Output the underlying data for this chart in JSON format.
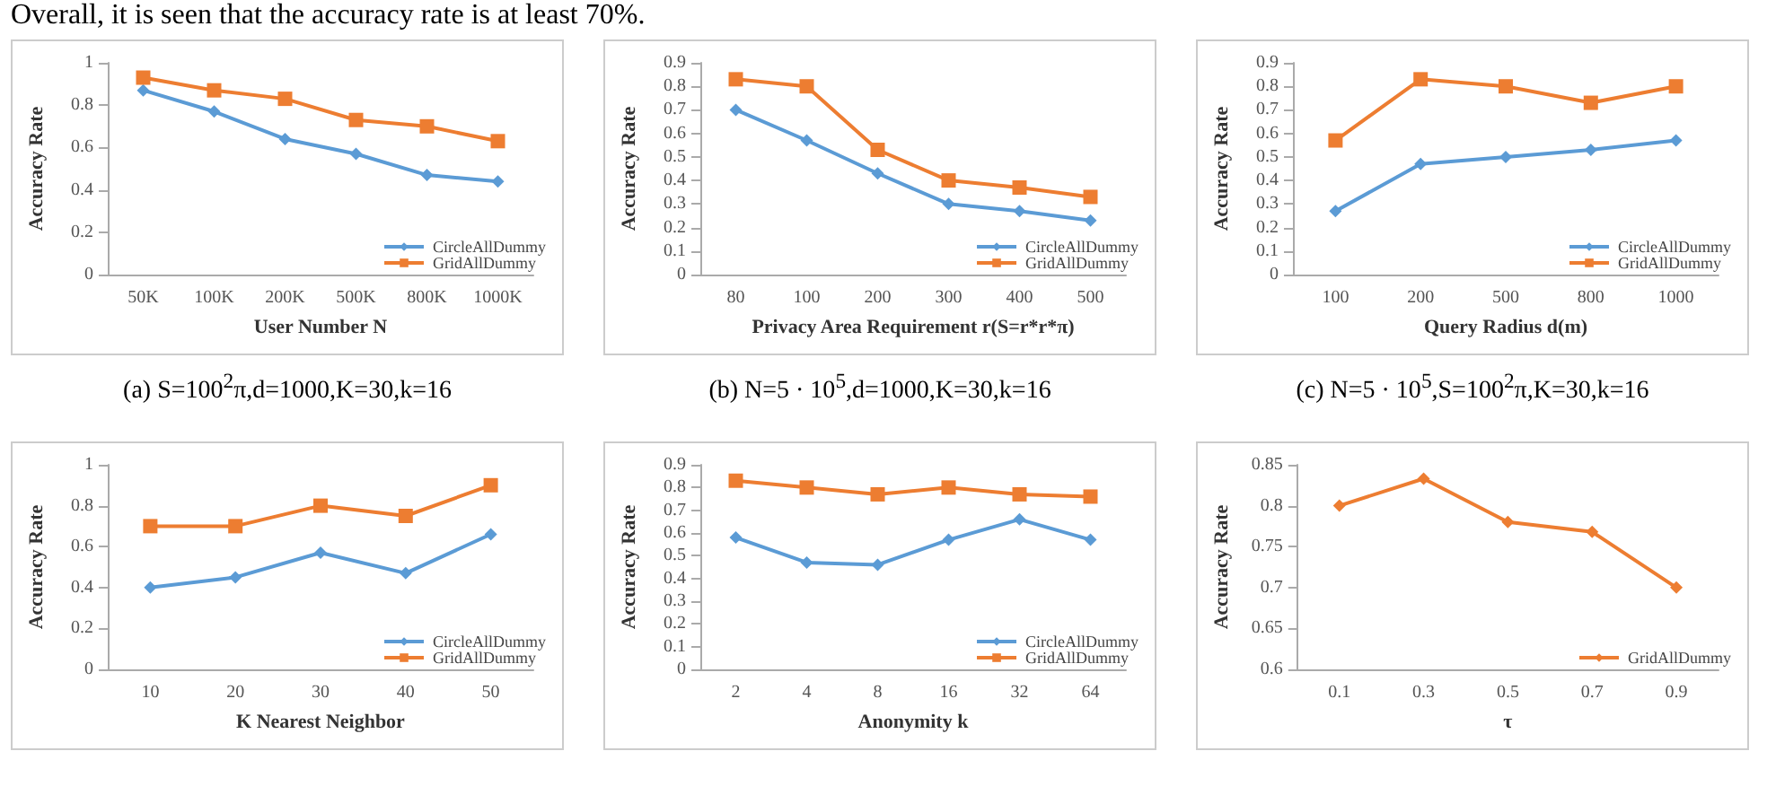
{
  "chart_data": [
    {
      "type": "line",
      "annotations": [
        "Overall, it is seen that the accuracy rate is at least 70%.",
        "(a) S=100$^{2}$π,d=1000,K=30,k=16"
      ],
      "xlabel": "User Number N",
      "ylabel": "Accuracy Rate",
      "categories": [
        "50K",
        "100K",
        "200K",
        "500K",
        "800K",
        "1000K"
      ],
      "series": [
        {
          "name": "CircleAllDummy",
          "color": "#5b9bd5",
          "marker": "diamond",
          "values": [
            0.87,
            0.77,
            0.64,
            0.57,
            0.47,
            0.44
          ]
        },
        {
          "name": "GridAllDummy",
          "color": "#ed7d31",
          "marker": "square",
          "values": [
            0.93,
            0.87,
            0.83,
            0.73,
            0.7,
            0.63
          ]
        }
      ],
      "ylim": [
        0,
        1
      ],
      "yticks": [
        0,
        0.2,
        0.4,
        0.6,
        0.8,
        1
      ],
      "grid": false,
      "legend": "bottom right"
    },
    {
      "type": "line",
      "annotations": [
        "(b) N=5 · 10$^{5}$,d=1000,K=30,k=16"
      ],
      "xlabel": "Privacy Area Requirement r(S=r*r*π)",
      "ylabel": "Accuracy Rate",
      "categories": [
        "80",
        "100",
        "200",
        "300",
        "400",
        "500"
      ],
      "series": [
        {
          "name": "CircleAllDummy",
          "color": "#5b9bd5",
          "marker": "diamond",
          "values": [
            0.7,
            0.57,
            0.43,
            0.3,
            0.27,
            0.23
          ]
        },
        {
          "name": "GridAllDummy",
          "color": "#ed7d31",
          "marker": "square",
          "values": [
            0.83,
            0.8,
            0.53,
            0.4,
            0.37,
            0.33
          ]
        }
      ],
      "ylim": [
        0,
        0.9
      ],
      "yticks": [
        0,
        0.1,
        0.2,
        0.3,
        0.4,
        0.5,
        0.6,
        0.7,
        0.8,
        0.9
      ],
      "grid": false,
      "legend": "bottom right"
    },
    {
      "type": "line",
      "annotations": [
        "(c) N=5 · 10$^{5}$,S=100$^{2}$π,K=30,k=16"
      ],
      "xlabel": "Query Radius d(m)",
      "ylabel": "Accuracy Rate",
      "categories": [
        "100",
        "200",
        "500",
        "800",
        "1000"
      ],
      "series": [
        {
          "name": "CircleAllDummy",
          "color": "#5b9bd5",
          "marker": "diamond",
          "values": [
            0.27,
            0.47,
            0.5,
            0.53,
            0.57
          ]
        },
        {
          "name": "GridAllDummy",
          "color": "#ed7d31",
          "marker": "square",
          "values": [
            0.57,
            0.83,
            0.8,
            0.73,
            0.8
          ]
        }
      ],
      "ylim": [
        0,
        0.9
      ],
      "yticks": [
        0,
        0.1,
        0.2,
        0.3,
        0.4,
        0.5,
        0.6,
        0.7,
        0.8,
        0.9
      ],
      "grid": false,
      "legend": "bottom right"
    },
    {
      "type": "line",
      "xlabel": "K Nearest Neighbor",
      "ylabel": "Accuracy Rate",
      "categories": [
        "10",
        "20",
        "30",
        "40",
        "50"
      ],
      "series": [
        {
          "name": "CircleAllDummy",
          "color": "#5b9bd5",
          "marker": "diamond",
          "values": [
            0.4,
            0.45,
            0.57,
            0.47,
            0.66
          ]
        },
        {
          "name": "GridAllDummy",
          "color": "#ed7d31",
          "marker": "square",
          "values": [
            0.7,
            0.7,
            0.8,
            0.75,
            0.9
          ]
        }
      ],
      "ylim": [
        0,
        1
      ],
      "yticks": [
        0,
        0.2,
        0.4,
        0.6,
        0.8,
        1
      ],
      "grid": false,
      "legend": "bottom right"
    },
    {
      "type": "line",
      "xlabel": "Anonymity k",
      "ylabel": "Accuracy Rate",
      "categories": [
        "2",
        "4",
        "8",
        "16",
        "32",
        "64"
      ],
      "series": [
        {
          "name": "CircleAllDummy",
          "color": "#5b9bd5",
          "marker": "diamond",
          "values": [
            0.58,
            0.47,
            0.46,
            0.57,
            0.66,
            0.57
          ]
        },
        {
          "name": "GridAllDummy",
          "color": "#ed7d31",
          "marker": "square",
          "values": [
            0.83,
            0.8,
            0.77,
            0.8,
            0.77,
            0.76
          ]
        }
      ],
      "ylim": [
        0,
        0.9
      ],
      "yticks": [
        0,
        0.1,
        0.2,
        0.3,
        0.4,
        0.5,
        0.6,
        0.7,
        0.8,
        0.9
      ],
      "grid": false,
      "legend": "bottom right"
    },
    {
      "type": "line",
      "xlabel": "τ",
      "ylabel": "Accuracy Rate",
      "categories": [
        "0.1",
        "0.3",
        "0.5",
        "0.7",
        "0.9"
      ],
      "series": [
        {
          "name": "GridAllDummy",
          "color": "#ed7d31",
          "marker": "diamond",
          "values": [
            0.8,
            0.833,
            0.78,
            0.768,
            0.7
          ]
        }
      ],
      "ylim": [
        0.6,
        0.85
      ],
      "yticks": [
        0.6,
        0.65,
        0.7,
        0.75,
        0.8,
        0.85
      ],
      "grid": false,
      "legend": "bottom right"
    }
  ]
}
